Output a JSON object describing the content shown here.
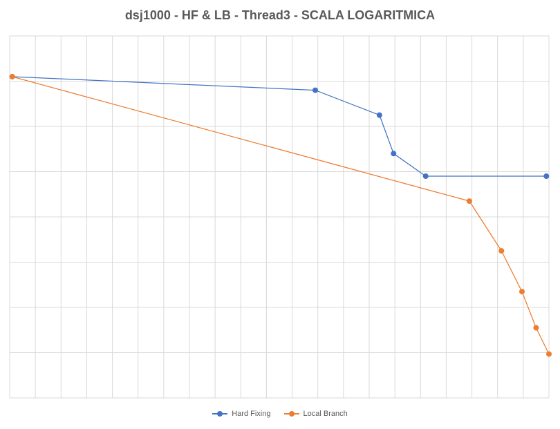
{
  "chart_data": {
    "type": "line",
    "title": "dsj1000 - HF & LB - Thread3  - SCALA LOGARITMICA",
    "xlabel": "",
    "ylabel": "",
    "x_scale": "log",
    "y_scale": "log",
    "grid": true,
    "legend_position": "bottom",
    "x_range": [
      0,
      21
    ],
    "y_range": [
      0,
      8
    ],
    "series": [
      {
        "name": "Hard Fixing",
        "color": "#4472C4",
        "x": [
          0.1,
          11.9,
          14.4,
          14.95,
          16.2,
          20.9
        ],
        "y": [
          7.1,
          6.8,
          6.25,
          5.4,
          4.9,
          4.9
        ]
      },
      {
        "name": "Local Branch",
        "color": "#ED7D31",
        "x": [
          0.1,
          17.9,
          19.15,
          19.95,
          20.5,
          21.0
        ],
        "y": [
          7.1,
          4.35,
          3.25,
          2.35,
          1.55,
          0.97
        ]
      }
    ]
  }
}
